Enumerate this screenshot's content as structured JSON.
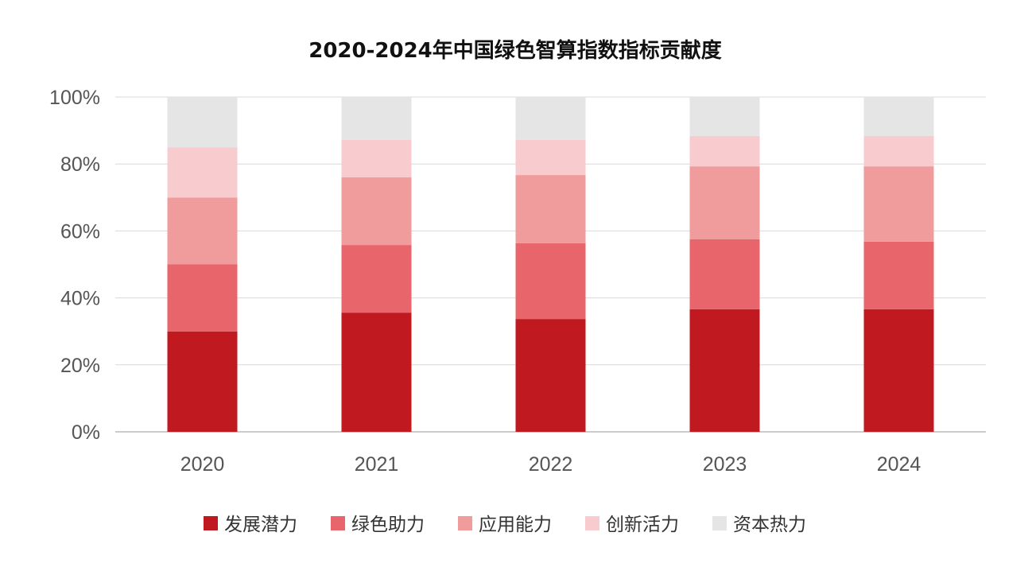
{
  "chart_data": {
    "type": "bar",
    "stacked": true,
    "title": "2020-2024年中国绿色智算指数指标贡献度",
    "xlabel": "",
    "ylabel": "",
    "ylim": [
      0,
      100
    ],
    "yticks": [
      "0%",
      "20%",
      "40%",
      "60%",
      "80%",
      "100%"
    ],
    "grid": true,
    "legend_position": "bottom",
    "categories": [
      "2020",
      "2021",
      "2022",
      "2023",
      "2024"
    ],
    "series": [
      {
        "name": "发展潜力",
        "color": "#C0191F",
        "values": [
          30,
          35.6,
          33.7,
          36.6,
          36.6
        ]
      },
      {
        "name": "绿色助力",
        "color": "#E8666B",
        "values": [
          20,
          20.2,
          22.6,
          20.9,
          20.2
        ]
      },
      {
        "name": "应用能力",
        "color": "#F09B9C",
        "values": [
          20,
          20.2,
          20.4,
          21.8,
          22.5
        ]
      },
      {
        "name": "创新活力",
        "color": "#F8CBCE",
        "values": [
          15,
          11.2,
          10.5,
          9.1,
          9.1
        ]
      },
      {
        "name": "资本热力",
        "color": "#E5E5E5",
        "values": [
          15,
          12.8,
          12.8,
          11.6,
          11.6
        ]
      }
    ]
  }
}
